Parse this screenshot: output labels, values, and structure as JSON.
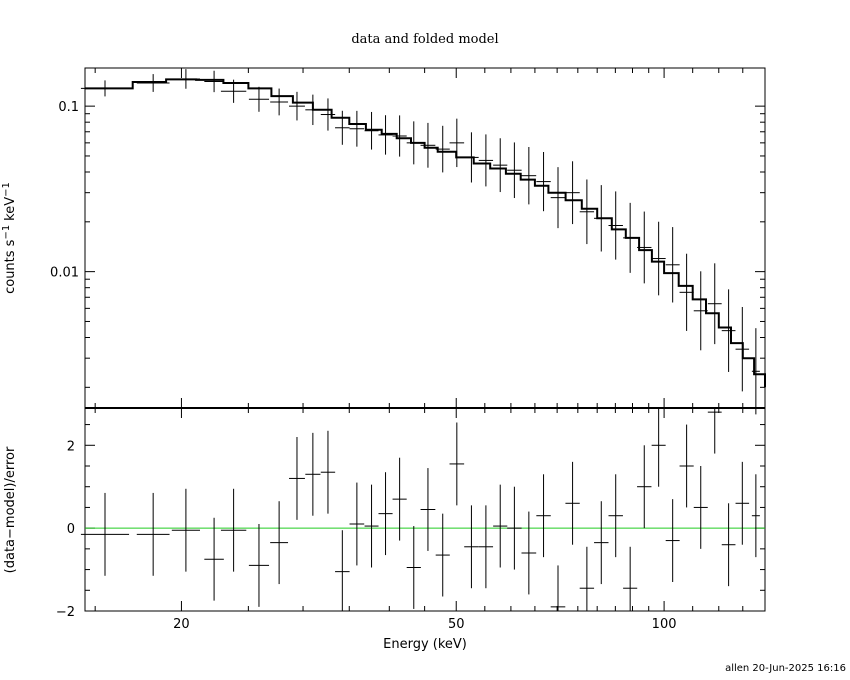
{
  "chart_data": [
    {
      "type": "line",
      "title": "data and folded model",
      "xlabel": "Energy (keV)",
      "ylabel": "counts s",
      "ylabel_unit": "keV",
      "ylabel_exponent": "−1",
      "xscale": "log",
      "yscale": "log",
      "xlim": [
        14.5,
        140
      ],
      "ylim": [
        0.0015,
        0.17
      ],
      "yticks": [
        0.01,
        0.1
      ],
      "ytick_labels": [
        "0.01",
        "0.1"
      ],
      "xticks": [
        20,
        50,
        100
      ],
      "model_color": "#000000",
      "data_color": "#000000",
      "series": [
        {
          "name": "data",
          "x": [
            15.5,
            18.2,
            20.3,
            22.3,
            23.8,
            25.9,
            27.7,
            29.4,
            31.0,
            32.6,
            34.2,
            35.9,
            37.7,
            39.5,
            41.4,
            43.4,
            45.5,
            47.8,
            50.1,
            52.6,
            55.2,
            57.9,
            60.7,
            63.7,
            66.9,
            70.2,
            73.7,
            77.3,
            81.1,
            85.1,
            89.3,
            93.6,
            98.2,
            102.9,
            107.8,
            113.0,
            118.4,
            124.0,
            129.8,
            135.8
          ],
          "y": [
            0.128,
            0.138,
            0.146,
            0.141,
            0.123,
            0.11,
            0.106,
            0.1,
            0.095,
            0.089,
            0.074,
            0.073,
            0.071,
            0.067,
            0.066,
            0.06,
            0.058,
            0.055,
            0.06,
            0.049,
            0.047,
            0.044,
            0.041,
            0.038,
            0.035,
            0.028,
            0.03,
            0.023,
            0.021,
            0.019,
            0.016,
            0.014,
            0.012,
            0.011,
            0.0075,
            0.0058,
            0.0064,
            0.0044,
            0.0034,
            0.0025
          ]
        },
        {
          "name": "folded model",
          "x": [
            14.5,
            17.0,
            19.0,
            21.0,
            23.0,
            25.0,
            27.0,
            29.0,
            31.0,
            33.0,
            35.0,
            37.0,
            39.0,
            41.0,
            43.0,
            45.0,
            47.0,
            50.0,
            53.0,
            56.0,
            59.0,
            62.0,
            65.0,
            68.0,
            72.0,
            76.0,
            80.0,
            84.0,
            88.0,
            92.0,
            96.0,
            100.0,
            105.0,
            110.0,
            115.0,
            120.0,
            125.0,
            130.0,
            135.0,
            140.0
          ],
          "y": [
            0.128,
            0.14,
            0.145,
            0.144,
            0.138,
            0.128,
            0.115,
            0.105,
            0.095,
            0.085,
            0.078,
            0.072,
            0.068,
            0.064,
            0.06,
            0.056,
            0.053,
            0.049,
            0.045,
            0.042,
            0.039,
            0.036,
            0.033,
            0.03,
            0.027,
            0.024,
            0.021,
            0.018,
            0.016,
            0.0135,
            0.0115,
            0.0098,
            0.0082,
            0.0068,
            0.0056,
            0.0046,
            0.0037,
            0.003,
            0.0024,
            0.002
          ]
        }
      ]
    },
    {
      "type": "scatter",
      "xlabel": "Energy (keV)",
      "ylabel": "(data−model)/error",
      "xscale": "log",
      "xlim": [
        14.5,
        140
      ],
      "ylim": [
        -2,
        2.9
      ],
      "yticks": [
        -2,
        0,
        2
      ],
      "ytick_labels": [
        "−2",
        "0",
        "2"
      ],
      "xticks": [
        20,
        50,
        100
      ],
      "xtick_labels": [
        "20",
        "50",
        "100"
      ],
      "zero_line_color": "#22cc22",
      "series": [
        {
          "name": "residuals",
          "x": [
            15.5,
            18.2,
            20.3,
            22.3,
            23.8,
            25.9,
            27.7,
            29.4,
            31.0,
            32.6,
            34.2,
            35.9,
            37.7,
            39.5,
            41.4,
            43.4,
            45.5,
            47.8,
            50.1,
            52.6,
            55.2,
            57.9,
            60.7,
            63.7,
            66.9,
            70.2,
            73.7,
            77.3,
            81.1,
            85.1,
            89.3,
            93.6,
            98.2,
            102.9,
            107.8,
            113.0,
            118.4,
            124.0,
            129.8,
            135.8
          ],
          "y": [
            -0.15,
            -0.15,
            -0.05,
            -0.75,
            -0.05,
            -0.9,
            -0.35,
            1.2,
            1.3,
            1.35,
            -1.05,
            0.1,
            0.05,
            0.35,
            0.7,
            -0.95,
            0.45,
            -0.65,
            1.55,
            -0.45,
            -0.45,
            0.05,
            0.0,
            -0.6,
            0.3,
            -1.9,
            0.6,
            -1.45,
            -0.35,
            0.3,
            -1.45,
            1.0,
            2.0,
            -0.3,
            1.5,
            0.5,
            2.8,
            -0.4,
            0.6,
            0.3
          ]
        }
      ]
    }
  ],
  "footer": "allen 20-Jun-2025 16:16"
}
